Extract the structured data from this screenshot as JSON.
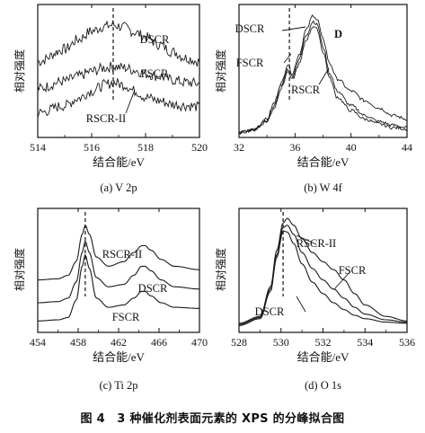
{
  "caption": "图 4　3 种催化剂表面元素的 XPS 的分峰拟合图",
  "chart_data": [
    {
      "type": "line",
      "subtitle": "(a)  V 2p",
      "xlabel": "结合能/eV",
      "ylabel": "相对强度",
      "xlim": [
        514,
        520
      ],
      "xticks": [
        514,
        516,
        518,
        520
      ],
      "peak_marker": 516.8,
      "series": [
        {
          "name": "DSCR",
          "x": [
            514,
            515,
            515.5,
            516,
            516.5,
            516.8,
            517.2,
            517.6,
            518,
            518.5,
            519,
            519.5,
            520
          ],
          "y": [
            0.62,
            0.72,
            0.8,
            0.87,
            0.91,
            0.92,
            0.9,
            0.86,
            0.82,
            0.76,
            0.7,
            0.65,
            0.62
          ],
          "noise": 0.04
        },
        {
          "name": "FSCR",
          "x": [
            514,
            515,
            515.5,
            516,
            516.5,
            516.8,
            517.2,
            517.6,
            518,
            518.5,
            519,
            519.5,
            520
          ],
          "y": [
            0.4,
            0.46,
            0.5,
            0.54,
            0.57,
            0.58,
            0.57,
            0.55,
            0.52,
            0.5,
            0.47,
            0.45,
            0.44
          ],
          "noise": 0.04
        },
        {
          "name": "RSCR-II",
          "x": [
            514,
            515,
            515.5,
            516,
            516.5,
            516.8,
            517.2,
            517.6,
            518,
            518.5,
            519,
            519.5,
            520
          ],
          "y": [
            0.2,
            0.26,
            0.32,
            0.38,
            0.43,
            0.45,
            0.43,
            0.38,
            0.33,
            0.3,
            0.27,
            0.26,
            0.25
          ],
          "noise": 0.04
        }
      ]
    },
    {
      "type": "line",
      "subtitle": "(b)  W 4f",
      "xlabel": "结合能/eV",
      "ylabel": "相对强度",
      "xlim": [
        32,
        44
      ],
      "xticks": [
        32,
        36,
        40,
        44
      ],
      "peak_marker": 35.6,
      "series": [
        {
          "name": "DSCR",
          "x": [
            32,
            33,
            34,
            34.5,
            35,
            35.5,
            35.8,
            36.3,
            36.8,
            37.3,
            37.6,
            38,
            38.5,
            39,
            40,
            41,
            42,
            43,
            44
          ],
          "y": [
            0.04,
            0.06,
            0.15,
            0.28,
            0.44,
            0.6,
            0.52,
            0.68,
            0.88,
            1.0,
            0.96,
            0.8,
            0.6,
            0.48,
            0.38,
            0.3,
            0.24,
            0.18,
            0.15
          ],
          "noise": 0.012
        },
        {
          "name": "FSCR",
          "x": [
            32,
            33,
            34,
            34.5,
            35,
            35.5,
            35.8,
            36.3,
            36.8,
            37.3,
            37.6,
            38,
            38.5,
            39,
            40,
            41,
            42,
            43,
            44
          ],
          "y": [
            0.04,
            0.06,
            0.14,
            0.26,
            0.42,
            0.56,
            0.5,
            0.64,
            0.84,
            0.95,
            0.92,
            0.74,
            0.52,
            0.38,
            0.26,
            0.18,
            0.13,
            0.1,
            0.08
          ],
          "noise": 0.012
        },
        {
          "name": "RSCR",
          "x": [
            32,
            33,
            34,
            34.5,
            35,
            35.5,
            35.8,
            36.3,
            36.8,
            37.3,
            37.6,
            38,
            38.5,
            39,
            40,
            41,
            42,
            43,
            44
          ],
          "y": [
            0.04,
            0.06,
            0.13,
            0.24,
            0.4,
            0.54,
            0.47,
            0.6,
            0.8,
            0.91,
            0.88,
            0.7,
            0.48,
            0.33,
            0.22,
            0.15,
            0.11,
            0.08,
            0.07
          ],
          "noise": 0.012
        }
      ],
      "annotations": [
        "D"
      ]
    },
    {
      "type": "line",
      "subtitle": "(c)  Ti 2p",
      "xlabel": "结合能/eV",
      "ylabel": "相对强度",
      "xlim": [
        454,
        470
      ],
      "xticks": [
        454,
        458,
        462,
        466,
        470
      ],
      "peak_marker": 458.7,
      "series": [
        {
          "name": "RSCR-II",
          "x": [
            454,
            456,
            457,
            457.8,
            458.4,
            458.7,
            459.1,
            459.8,
            461,
            462.5,
            463.5,
            464.3,
            464.6,
            465.2,
            466.2,
            467.5,
            470
          ],
          "y": [
            0.46,
            0.47,
            0.5,
            0.62,
            0.86,
            0.94,
            0.86,
            0.66,
            0.58,
            0.62,
            0.7,
            0.76,
            0.76,
            0.72,
            0.64,
            0.58,
            0.55
          ],
          "noise": 0
        },
        {
          "name": "DSCR",
          "x": [
            454,
            456,
            457,
            457.8,
            458.4,
            458.7,
            459.1,
            459.8,
            461,
            462.5,
            463.5,
            464.3,
            464.6,
            465.2,
            466.2,
            467.5,
            470
          ],
          "y": [
            0.26,
            0.27,
            0.3,
            0.44,
            0.7,
            0.8,
            0.7,
            0.48,
            0.4,
            0.42,
            0.5,
            0.58,
            0.58,
            0.54,
            0.46,
            0.4,
            0.38
          ],
          "noise": 0
        },
        {
          "name": "FSCR",
          "x": [
            454,
            456,
            457,
            457.8,
            458.4,
            458.7,
            459.1,
            459.8,
            461,
            462.5,
            463.5,
            464.3,
            464.6,
            465.2,
            466.2,
            467.5,
            470
          ],
          "y": [
            0.1,
            0.11,
            0.13,
            0.28,
            0.58,
            0.68,
            0.56,
            0.3,
            0.22,
            0.24,
            0.3,
            0.36,
            0.36,
            0.32,
            0.26,
            0.22,
            0.21
          ],
          "noise": 0
        }
      ]
    },
    {
      "type": "line",
      "subtitle": "(d)  O 1s",
      "xlabel": "结合能/eV",
      "ylabel": "相对强度",
      "xlim": [
        528,
        536
      ],
      "xticks": [
        528,
        530,
        532,
        534,
        536
      ],
      "peak_marker": 530.1,
      "series": [
        {
          "name": "RSCR-II",
          "x": [
            528,
            529,
            529.5,
            529.8,
            530.1,
            530.3,
            530.6,
            531,
            531.5,
            532,
            532.5,
            533,
            533.5,
            534,
            535,
            536
          ],
          "y": [
            0.08,
            0.14,
            0.4,
            0.72,
            0.96,
            1.0,
            0.94,
            0.82,
            0.7,
            0.62,
            0.55,
            0.46,
            0.34,
            0.24,
            0.14,
            0.1
          ],
          "noise": 0
        },
        {
          "name": "FSCR",
          "x": [
            528,
            529,
            529.5,
            529.8,
            530.1,
            530.3,
            530.6,
            531,
            531.5,
            532,
            532.5,
            533,
            533.5,
            534,
            535,
            536
          ],
          "y": [
            0.07,
            0.13,
            0.38,
            0.68,
            0.92,
            0.94,
            0.86,
            0.7,
            0.56,
            0.46,
            0.38,
            0.3,
            0.22,
            0.16,
            0.11,
            0.09
          ],
          "noise": 0
        },
        {
          "name": "DSCR",
          "x": [
            528,
            529,
            529.5,
            529.8,
            530.1,
            530.3,
            530.6,
            531,
            531.5,
            532,
            532.5,
            533,
            533.5,
            534,
            535,
            536
          ],
          "y": [
            0.06,
            0.12,
            0.36,
            0.66,
            0.89,
            0.88,
            0.78,
            0.6,
            0.44,
            0.34,
            0.26,
            0.2,
            0.15,
            0.12,
            0.09,
            0.08
          ],
          "noise": 0
        }
      ]
    }
  ]
}
